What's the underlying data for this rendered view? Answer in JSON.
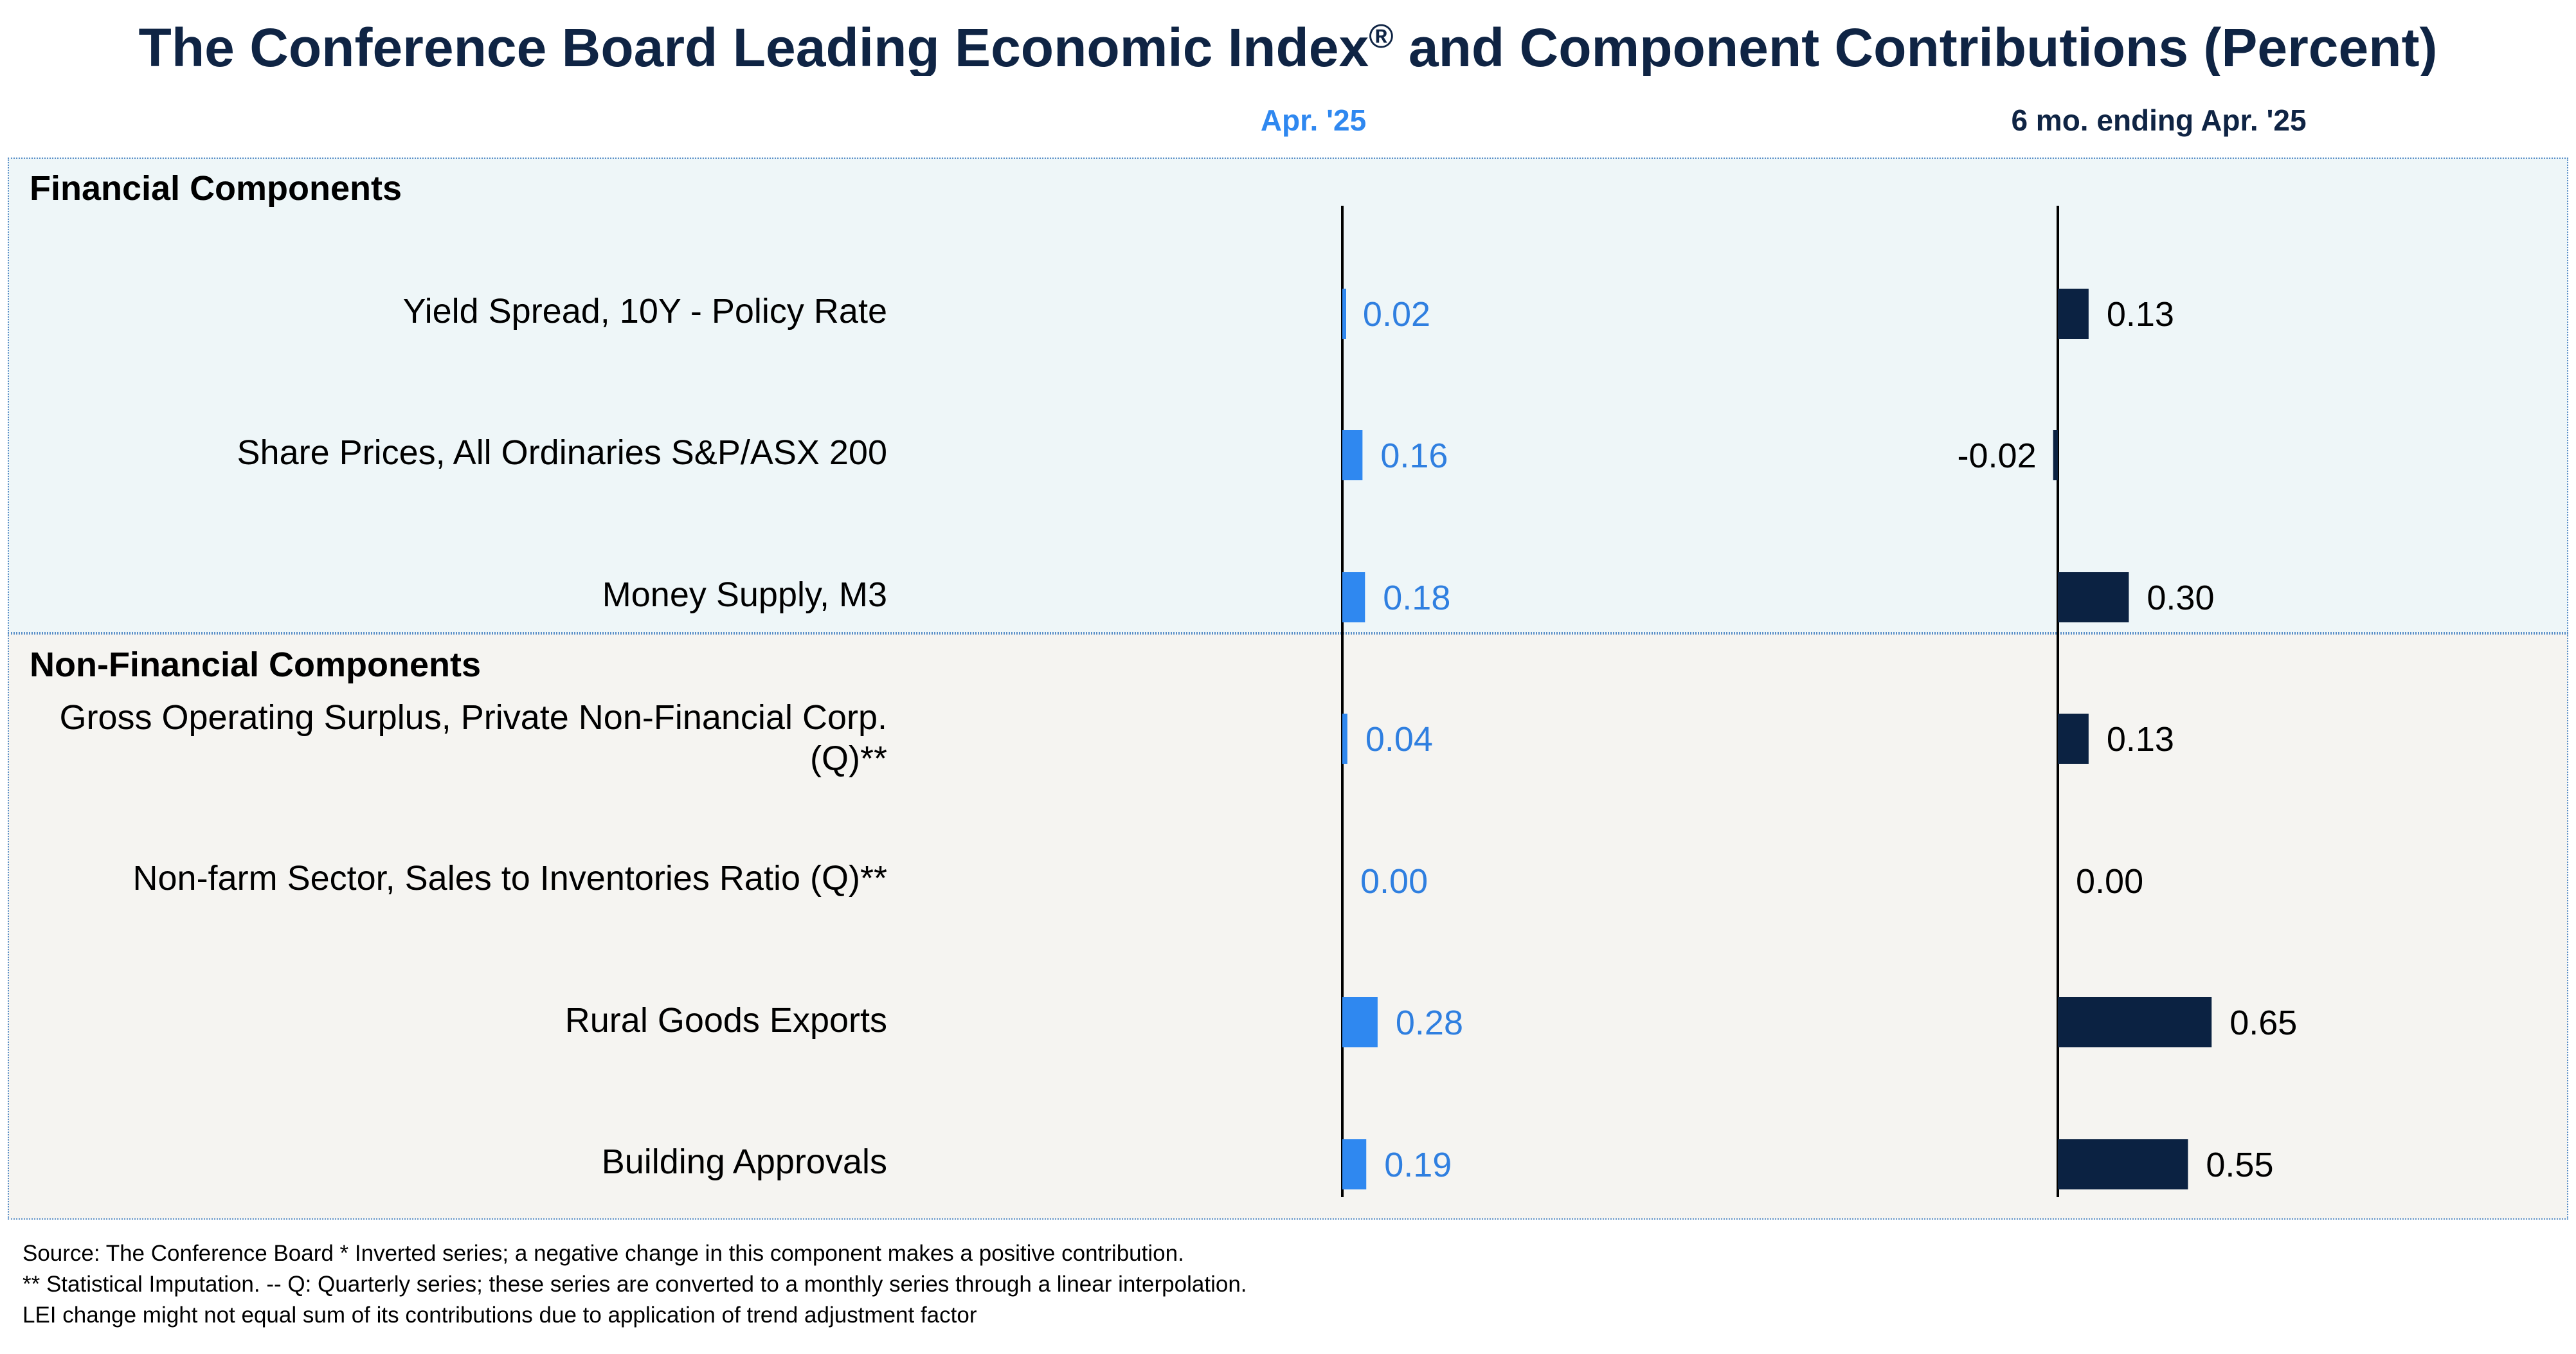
{
  "title": "The Conference Board Leading Economic Index",
  "title_mark": "®",
  "title_suffix": " and Component Contributions (Percent)",
  "chart_data": {
    "type": "bar",
    "orientation": "horizontal",
    "title": "The Conference Board Leading Economic Index® and Component Contributions (Percent)",
    "groups": [
      {
        "name": "Financial Components",
        "categories": [
          "Yield Spread, 10Y - Policy Rate",
          "Share Prices, All Ordinaries S&P/ASX 200",
          "Money Supply, M3"
        ]
      },
      {
        "name": "Non-Financial Components",
        "categories": [
          "Gross Operating Surplus, Private Non-Financial Corp. (Q)**",
          "Non-farm Sector, Sales to Inventories Ratio (Q)**",
          "Rural Goods Exports",
          "Building Approvals"
        ]
      }
    ],
    "categories": [
      "Yield Spread, 10Y - Policy Rate",
      "Share Prices, All Ordinaries S&P/ASX 200",
      "Money Supply, M3",
      "Gross Operating Surplus, Private Non-Financial Corp. (Q)**",
      "Non-farm Sector, Sales to Inventories Ratio (Q)**",
      "Rural Goods Exports",
      "Building Approvals"
    ],
    "series": [
      {
        "name": "Apr. '25",
        "color": "#2f88f0",
        "label_color": "#2f7fe0",
        "values": [
          0.02,
          0.16,
          0.18,
          0.04,
          0.0,
          0.28,
          0.19
        ],
        "labels": [
          "0.02",
          "0.16",
          "0.18",
          "0.04",
          "0.00",
          "0.28",
          "0.19"
        ]
      },
      {
        "name": "6 mo. ending Apr. '25",
        "color": "#0b2242",
        "label_color": "#000000",
        "values": [
          0.13,
          -0.02,
          0.3,
          0.13,
          0.0,
          0.65,
          0.55
        ],
        "labels": [
          "0.13",
          "-0.02",
          "0.30",
          "0.13",
          "0.00",
          "0.65",
          "0.55"
        ]
      }
    ]
  },
  "footnotes": [
    "Source: The Conference Board *  Inverted series; a negative change in this component makes a positive contribution.",
    "**  Statistical Imputation. -- Q: Quarterly series; these series are converted to a monthly series through a linear interpolation.",
    "LEI change might not equal sum of its contributions due to application of trend adjustment factor"
  ]
}
